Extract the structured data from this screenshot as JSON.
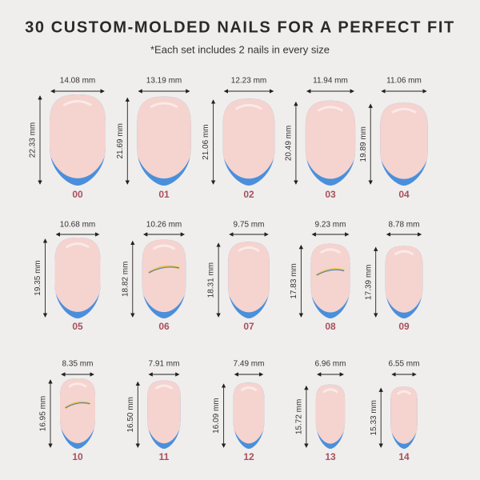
{
  "header": {
    "title": "30 CUSTOM-MOLDED NAILS FOR A PERFECT FIT",
    "subtitle": "*Each set includes 2 nails in every size"
  },
  "nails": [
    {
      "size": "00",
      "width": "14.08 mm",
      "length": "22.33 mm"
    },
    {
      "size": "01",
      "width": "13.19 mm",
      "length": "21.69 mm"
    },
    {
      "size": "02",
      "width": "12.23 mm",
      "length": "21.06 mm"
    },
    {
      "size": "03",
      "width": "11.94 mm",
      "length": "20.49 mm"
    },
    {
      "size": "04",
      "width": "11.06 mm",
      "length": "19.89 mm"
    },
    {
      "size": "05",
      "width": "10.68 mm",
      "length": "19.35 mm"
    },
    {
      "size": "06",
      "width": "10.26 mm",
      "length": "18.82 mm"
    },
    {
      "size": "07",
      "width": "9.75 mm",
      "length": "18.31 mm"
    },
    {
      "size": "08",
      "width": "9.23 mm",
      "length": "17.83 mm"
    },
    {
      "size": "09",
      "width": "8.78 mm",
      "length": "17.39 mm"
    },
    {
      "size": "10",
      "width": "8.35 mm",
      "length": "16.95 mm"
    },
    {
      "size": "11",
      "width": "7.91 mm",
      "length": "16.50 mm"
    },
    {
      "size": "12",
      "width": "7.49 mm",
      "length": "16.09 mm"
    },
    {
      "size": "13",
      "width": "6.96 mm",
      "length": "15.72 mm"
    },
    {
      "size": "14",
      "width": "6.55 mm",
      "length": "15.33 mm"
    }
  ]
}
